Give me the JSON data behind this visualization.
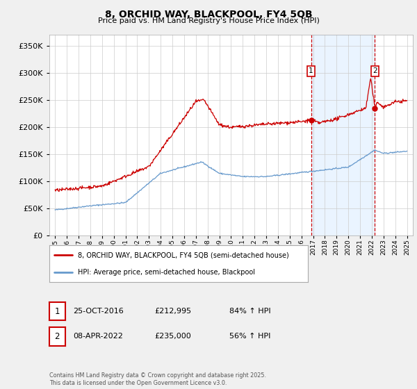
{
  "title": "8, ORCHID WAY, BLACKPOOL, FY4 5QB",
  "subtitle": "Price paid vs. HM Land Registry's House Price Index (HPI)",
  "red_label": "8, ORCHID WAY, BLACKPOOL, FY4 5QB (semi-detached house)",
  "blue_label": "HPI: Average price, semi-detached house, Blackpool",
  "annotation1_date": "25-OCT-2016",
  "annotation1_price": "£212,995",
  "annotation1_hpi": "84% ↑ HPI",
  "annotation2_date": "08-APR-2022",
  "annotation2_price": "£235,000",
  "annotation2_hpi": "56% ↑ HPI",
  "footer": "Contains HM Land Registry data © Crown copyright and database right 2025.\nThis data is licensed under the Open Government Licence v3.0.",
  "vline1_x": 2016.82,
  "vline2_x": 2022.27,
  "sale1_y": 212995,
  "sale2_y": 235000,
  "ylim": [
    0,
    370000
  ],
  "xlim": [
    1994.5,
    2025.5
  ],
  "background_color": "#f0f0f0",
  "plot_bg_color": "#ffffff",
  "red_color": "#cc0000",
  "blue_color": "#6699cc",
  "vline_color": "#cc0000",
  "shade_color": "#ddeeff"
}
